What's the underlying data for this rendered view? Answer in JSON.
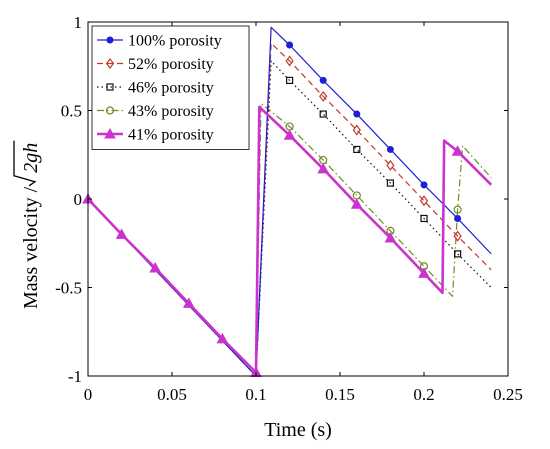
{
  "chart_data": {
    "type": "line",
    "xlabel": "Time (s)",
    "ylabel": {
      "prefix": "Mass velocity / ",
      "radicand": "2gh"
    },
    "xlim": [
      0,
      0.25
    ],
    "ylim": [
      -1,
      1
    ],
    "xticks": [
      0,
      0.05,
      0.1,
      0.15,
      0.2,
      0.25
    ],
    "xtick_labels": [
      "0",
      "0.05",
      "0.1",
      "0.15",
      "0.2",
      "0.25"
    ],
    "yticks": [
      -1,
      -0.5,
      0,
      0.5,
      1
    ],
    "ytick_labels": [
      "-1",
      "-0.5",
      "0",
      "0.5",
      "1"
    ],
    "grid": false,
    "legend_position": "top-left",
    "series": [
      {
        "name": "100% porosity",
        "color": "#1f1fd6",
        "line_style": "solid",
        "marker": "filled-circle",
        "x": [
          0,
          0.1,
          0.109,
          0.12,
          0.14,
          0.16,
          0.18,
          0.2,
          0.22,
          0.24
        ],
        "y": [
          0,
          -1,
          0.97,
          0.87,
          0.67,
          0.48,
          0.28,
          0.08,
          -0.11,
          -0.31
        ]
      },
      {
        "name": "52% porosity",
        "color": "#c0392b",
        "line_style": "dashed",
        "marker": "diamond",
        "x": [
          0,
          0.1,
          0.109,
          0.12,
          0.14,
          0.16,
          0.18,
          0.2,
          0.22,
          0.24
        ],
        "y": [
          0,
          -1,
          0.88,
          0.78,
          0.58,
          0.39,
          0.19,
          -0.01,
          -0.21,
          -0.4
        ]
      },
      {
        "name": "46% porosity",
        "color": "#111111",
        "line_style": "dotted",
        "marker": "square",
        "x": [
          0,
          0.1,
          0.109,
          0.12,
          0.14,
          0.16,
          0.18,
          0.2,
          0.22,
          0.24
        ],
        "y": [
          0,
          -1,
          0.78,
          0.67,
          0.48,
          0.28,
          0.09,
          -0.11,
          -0.31,
          -0.5
        ]
      },
      {
        "name": "43% porosity",
        "color": "#6b8e23",
        "line_style": "dash-dot",
        "marker": "circle",
        "x": [
          0,
          0.1,
          0.103,
          0.12,
          0.14,
          0.16,
          0.18,
          0.2,
          0.217,
          0.22,
          0.223,
          0.24
        ],
        "y": [
          0,
          -1,
          0.54,
          0.41,
          0.22,
          0.02,
          -0.18,
          -0.38,
          -0.55,
          -0.06,
          0.3,
          0.12
        ]
      },
      {
        "name": "41% porosity",
        "color": "#cc33cc",
        "line_style": "solid-thick",
        "marker": "filled-triangle",
        "x": [
          0,
          0.02,
          0.04,
          0.06,
          0.08,
          0.1,
          0.102,
          0.12,
          0.14,
          0.16,
          0.18,
          0.2,
          0.211,
          0.212,
          0.22,
          0.24
        ],
        "y": [
          0,
          -0.2,
          -0.39,
          -0.59,
          -0.79,
          -0.98,
          0.52,
          0.36,
          0.17,
          -0.03,
          -0.22,
          -0.42,
          -0.53,
          0.33,
          0.27,
          0.08
        ]
      }
    ],
    "marker_x": [
      0,
      0.02,
      0.04,
      0.06,
      0.08,
      0.1,
      0.12,
      0.14,
      0.16,
      0.18,
      0.2,
      0.22
    ]
  }
}
